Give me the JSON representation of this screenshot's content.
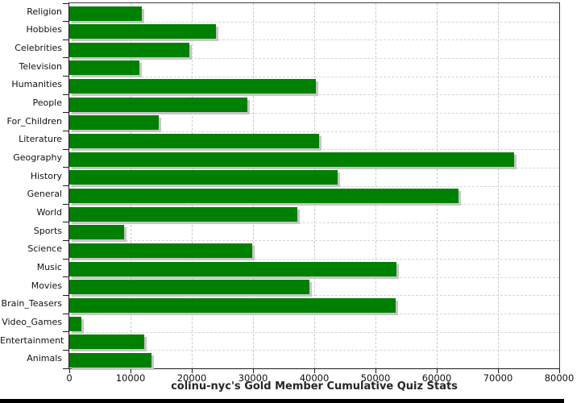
{
  "chart_data": {
    "type": "bar",
    "orientation": "horizontal",
    "title": "colinu-nyc's Gold Member Cumulative Quiz Stats",
    "categories": [
      "Religion",
      "Hobbies",
      "Celebrities",
      "Television",
      "Humanities",
      "People",
      "For_Children",
      "Literature",
      "Geography",
      "History",
      "General",
      "World",
      "Sports",
      "Science",
      "Music",
      "Movies",
      "Brain_Teasers",
      "Video_Games",
      "Entertainment",
      "Animals"
    ],
    "values": [
      11800,
      23900,
      19600,
      11400,
      40300,
      29100,
      14600,
      40800,
      72600,
      43800,
      63600,
      37200,
      8900,
      29900,
      53400,
      39200,
      53300,
      2000,
      12300,
      13400
    ],
    "xlabel": "",
    "ylabel": "",
    "xlim": [
      0,
      80000
    ],
    "x_ticks": [
      0,
      10000,
      20000,
      30000,
      40000,
      50000,
      60000,
      70000,
      80000
    ],
    "grid": true,
    "legend": "none",
    "bar_color": "#008000",
    "bar_shadow_color": "#c6c6c6",
    "plot_background": "#ffffff",
    "bottom_strip_color": "#000000"
  }
}
